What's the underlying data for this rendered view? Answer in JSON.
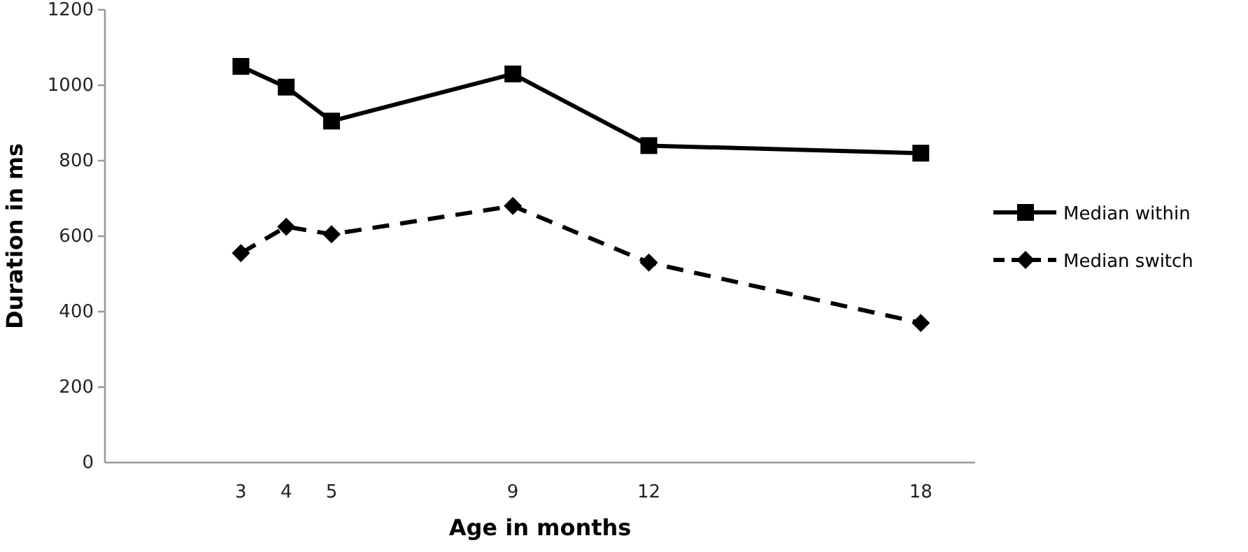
{
  "chart_data": {
    "type": "line",
    "xlabel": "Age in months",
    "ylabel": "Duration in ms",
    "x": [
      3,
      4,
      5,
      9,
      12,
      18
    ],
    "series": [
      {
        "name": "Median within",
        "color": "#000000",
        "marker": "square",
        "line_style": "solid",
        "values": [
          1050,
          995,
          905,
          1030,
          840,
          820
        ]
      },
      {
        "name": "Median switch",
        "color": "#000000",
        "marker": "diamond",
        "line_style": "dashed",
        "values": [
          555,
          625,
          605,
          680,
          530,
          370
        ]
      }
    ],
    "xlim": [
      0,
      19.2
    ],
    "xticks": [
      3,
      4,
      5,
      9,
      12,
      18
    ],
    "ylim": [
      0,
      1200
    ],
    "yticks": [
      0,
      200,
      400,
      600,
      800,
      1000,
      1200
    ],
    "grid": false,
    "legend": "right"
  }
}
